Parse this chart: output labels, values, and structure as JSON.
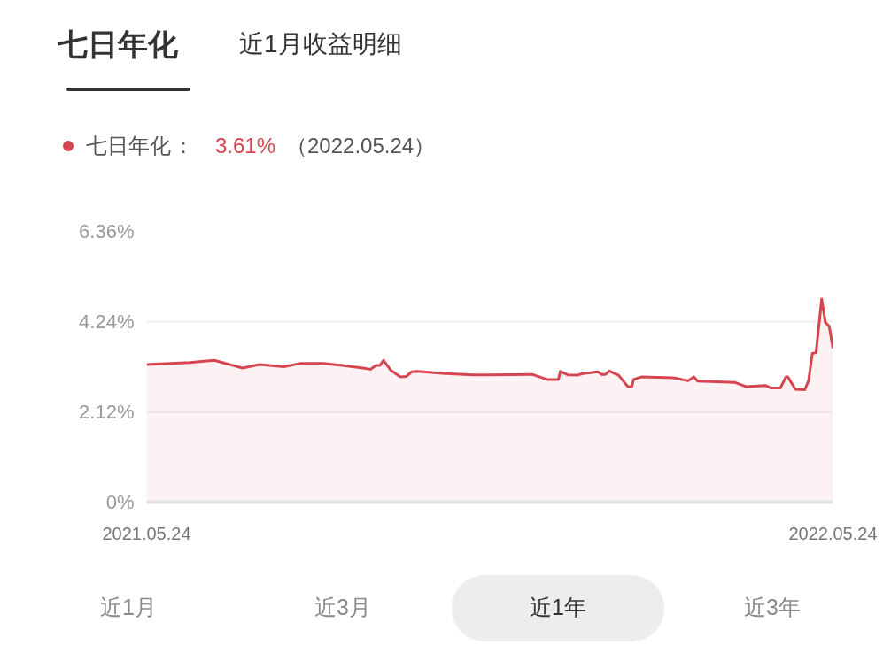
{
  "chart_data": {
    "type": "area",
    "title": "七日年化",
    "subtitle": "近1月收益明细",
    "x": [
      "2021-05-24",
      "2021-06-16",
      "2021-06-29",
      "2021-07-14",
      "2021-07-23",
      "2021-08-05",
      "2021-08-14",
      "2021-08-26",
      "2021-09-05",
      "2021-09-16",
      "2021-09-20",
      "2021-09-23",
      "2021-09-25",
      "2021-09-27",
      "2021-10-01",
      "2021-10-06",
      "2021-10-09",
      "2021-10-12",
      "2021-10-15",
      "2021-10-30",
      "2021-11-14",
      "2021-11-22",
      "2021-12-15",
      "2021-12-23",
      "2021-12-29",
      "2021-12-30",
      "2022-01-03",
      "2022-01-08",
      "2022-01-11",
      "2022-01-19",
      "2022-01-21",
      "2022-01-23",
      "2022-01-25",
      "2022-01-30",
      "2022-02-04",
      "2022-02-06",
      "2022-02-07",
      "2022-02-11",
      "2022-02-28",
      "2022-03-08",
      "2022-03-11",
      "2022-03-13",
      "2022-04-02",
      "2022-04-08",
      "2022-04-18",
      "2022-04-21",
      "2022-04-26",
      "2022-04-29",
      "2022-04-30",
      "2022-05-04",
      "2022-05-09",
      "2022-05-11",
      "2022-05-13",
      "2022-05-15",
      "2022-05-18",
      "2022-05-20",
      "2022-05-22",
      "2022-05-24"
    ],
    "series": [
      {
        "name": "七日年化",
        "color": "#d64550",
        "values": [
          3.23,
          3.28,
          3.33,
          3.15,
          3.23,
          3.18,
          3.26,
          3.26,
          3.21,
          3.15,
          3.12,
          3.21,
          3.21,
          3.33,
          3.09,
          2.94,
          2.95,
          3.06,
          3.07,
          3.02,
          2.99,
          2.99,
          3.0,
          2.88,
          2.88,
          3.07,
          2.99,
          2.98,
          3.02,
          3.06,
          3.0,
          3.0,
          3.08,
          2.98,
          2.71,
          2.71,
          2.88,
          2.94,
          2.92,
          2.85,
          2.94,
          2.84,
          2.81,
          2.71,
          2.74,
          2.68,
          2.68,
          2.94,
          2.94,
          2.65,
          2.64,
          2.85,
          3.49,
          3.51,
          4.77,
          4.22,
          4.13,
          3.61
        ]
      }
    ],
    "xlim": [
      "2021-05-24",
      "2022-05-24"
    ],
    "xticks": [
      {
        "value": "2021-05-24",
        "label": "2021.05.24"
      },
      {
        "value": "2022-05-24",
        "label": "2022.05.24"
      }
    ],
    "ylim": [
      0,
      6.36
    ],
    "yticks": [
      {
        "value": 0,
        "label": "0%"
      },
      {
        "value": 2.12,
        "label": "2.12%"
      },
      {
        "value": 4.24,
        "label": "4.24%"
      },
      {
        "value": 6.36,
        "label": "6.36%"
      }
    ],
    "grid": "y",
    "annotations": [
      "：",
      "3.61%",
      "（2022.05.24）",
      "近1月",
      "近3月",
      "近1年",
      "近3年"
    ]
  }
}
